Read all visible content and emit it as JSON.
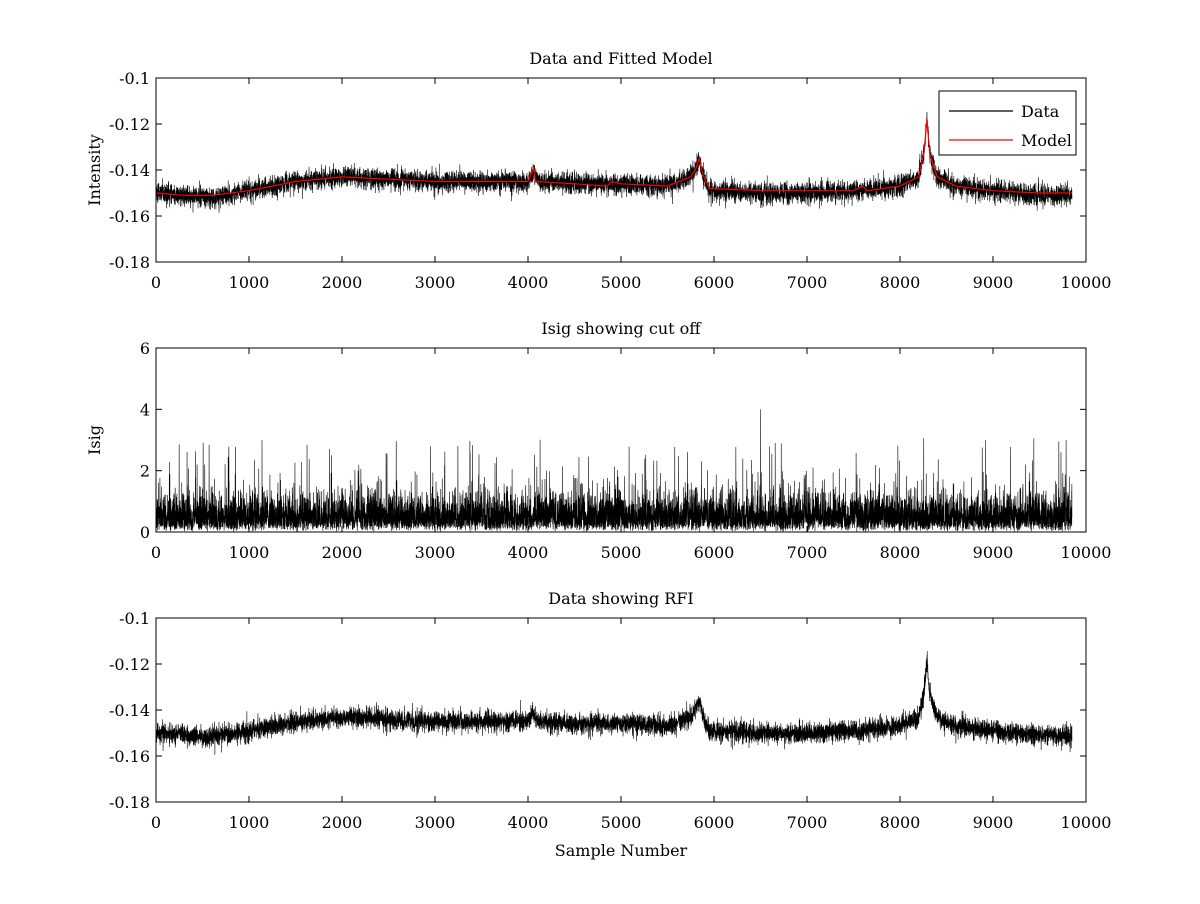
{
  "window_size": "1200x900",
  "chart_data": [
    {
      "type": "line",
      "title": "Data and Fitted Model",
      "xlabel": "",
      "ylabel": "Intensity",
      "xlim": [
        0,
        10000
      ],
      "ylim": [
        -0.18,
        -0.1
      ],
      "xticks": [
        0,
        1000,
        2000,
        3000,
        4000,
        5000,
        6000,
        7000,
        8000,
        9000,
        10000
      ],
      "yticks": [
        -0.18,
        -0.16,
        -0.14,
        -0.12,
        -0.1
      ],
      "xtick_labels": [
        "0",
        "1000",
        "2000",
        "3000",
        "4000",
        "5000",
        "6000",
        "7000",
        "8000",
        "9000",
        "10000"
      ],
      "ytick_labels": [
        "-0.18",
        "-0.16",
        "-0.14",
        "-0.12",
        "-0.1"
      ],
      "grid": false,
      "legend": {
        "placement": "top-right",
        "entries": [
          "Data",
          "Model"
        ]
      },
      "series": [
        {
          "name": "Data",
          "color": "#000000",
          "style": "noisy-line",
          "n_points": 9850,
          "baseline": [
            [
              0,
              -0.15
            ],
            [
              300,
              -0.151
            ],
            [
              600,
              -0.152
            ],
            [
              1000,
              -0.149
            ],
            [
              1500,
              -0.145
            ],
            [
              2000,
              -0.143
            ],
            [
              2500,
              -0.144
            ],
            [
              3000,
              -0.145
            ],
            [
              3500,
              -0.145
            ],
            [
              4000,
              -0.145
            ],
            [
              4060,
              -0.141
            ],
            [
              4100,
              -0.145
            ],
            [
              4500,
              -0.146
            ],
            [
              5000,
              -0.146
            ],
            [
              5500,
              -0.147
            ],
            [
              5750,
              -0.143
            ],
            [
              5800,
              -0.14
            ],
            [
              5840,
              -0.136
            ],
            [
              5880,
              -0.142
            ],
            [
              5950,
              -0.149
            ],
            [
              6500,
              -0.15
            ],
            [
              7000,
              -0.15
            ],
            [
              7500,
              -0.149
            ],
            [
              8000,
              -0.147
            ],
            [
              8200,
              -0.143
            ],
            [
              8260,
              -0.132
            ],
            [
              8290,
              -0.118
            ],
            [
              8320,
              -0.133
            ],
            [
              8400,
              -0.143
            ],
            [
              8600,
              -0.147
            ],
            [
              9000,
              -0.149
            ],
            [
              9500,
              -0.151
            ],
            [
              9850,
              -0.151
            ]
          ],
          "noise_amplitude": 0.004,
          "extremes": [
            -0.161,
            -0.114
          ]
        },
        {
          "name": "Model",
          "color": "#ff0000",
          "style": "line",
          "values": [
            [
              0,
              -0.15
            ],
            [
              300,
              -0.151
            ],
            [
              600,
              -0.151
            ],
            [
              1000,
              -0.149
            ],
            [
              1500,
              -0.145
            ],
            [
              2000,
              -0.143
            ],
            [
              2500,
              -0.144
            ],
            [
              3000,
              -0.145
            ],
            [
              3500,
              -0.145
            ],
            [
              4000,
              -0.145
            ],
            [
              4060,
              -0.139
            ],
            [
              4080,
              -0.145
            ],
            [
              4500,
              -0.146
            ],
            [
              4850,
              -0.147
            ],
            [
              4900,
              -0.145
            ],
            [
              5000,
              -0.146
            ],
            [
              5500,
              -0.147
            ],
            [
              5750,
              -0.143
            ],
            [
              5800,
              -0.14
            ],
            [
              5840,
              -0.135
            ],
            [
              5880,
              -0.142
            ],
            [
              5950,
              -0.148
            ],
            [
              6500,
              -0.149
            ],
            [
              7000,
              -0.149
            ],
            [
              7500,
              -0.149
            ],
            [
              7600,
              -0.147
            ],
            [
              7650,
              -0.149
            ],
            [
              8000,
              -0.147
            ],
            [
              8200,
              -0.143
            ],
            [
              8260,
              -0.132
            ],
            [
              8290,
              -0.118
            ],
            [
              8320,
              -0.133
            ],
            [
              8400,
              -0.143
            ],
            [
              8600,
              -0.147
            ],
            [
              9000,
              -0.149
            ],
            [
              9500,
              -0.15
            ],
            [
              9850,
              -0.15
            ]
          ]
        }
      ]
    },
    {
      "type": "line",
      "title": "Isig showing cut off",
      "xlabel": "",
      "ylabel": "Isig",
      "xlim": [
        0,
        10000
      ],
      "ylim": [
        0,
        6
      ],
      "xticks": [
        0,
        1000,
        2000,
        3000,
        4000,
        5000,
        6000,
        7000,
        8000,
        9000,
        10000
      ],
      "yticks": [
        0,
        2,
        4,
        6
      ],
      "xtick_labels": [
        "0",
        "1000",
        "2000",
        "3000",
        "4000",
        "5000",
        "6000",
        "7000",
        "8000",
        "9000",
        "10000"
      ],
      "ytick_labels": [
        "0",
        "2",
        "4",
        "6"
      ],
      "grid": false,
      "series": [
        {
          "color": "#000000",
          "style": "noisy-line",
          "n_points": 9850,
          "typical_range": [
            0,
            2
          ],
          "peak_max": 4.0,
          "peak_max_at": 6500
        }
      ]
    },
    {
      "type": "line",
      "title": "Data showing RFI",
      "xlabel": "Sample Number",
      "ylabel": "",
      "xlim": [
        0,
        10000
      ],
      "ylim": [
        -0.18,
        -0.1
      ],
      "xticks": [
        0,
        1000,
        2000,
        3000,
        4000,
        5000,
        6000,
        7000,
        8000,
        9000,
        10000
      ],
      "yticks": [
        -0.18,
        -0.16,
        -0.14,
        -0.12,
        -0.1
      ],
      "xtick_labels": [
        "0",
        "1000",
        "2000",
        "3000",
        "4000",
        "5000",
        "6000",
        "7000",
        "8000",
        "9000",
        "10000"
      ],
      "ytick_labels": [
        "-0.18",
        "-0.16",
        "-0.14",
        "-0.12",
        "-0.1"
      ],
      "grid": false,
      "series": [
        {
          "color": "#000000",
          "style": "noisy-line",
          "n_points": 9850,
          "baseline": [
            [
              0,
              -0.15
            ],
            [
              300,
              -0.151
            ],
            [
              600,
              -0.152
            ],
            [
              1000,
              -0.149
            ],
            [
              1500,
              -0.145
            ],
            [
              2000,
              -0.143
            ],
            [
              2500,
              -0.144
            ],
            [
              3000,
              -0.145
            ],
            [
              3500,
              -0.145
            ],
            [
              4000,
              -0.145
            ],
            [
              4060,
              -0.141
            ],
            [
              4100,
              -0.145
            ],
            [
              4500,
              -0.146
            ],
            [
              5000,
              -0.146
            ],
            [
              5500,
              -0.147
            ],
            [
              5750,
              -0.143
            ],
            [
              5800,
              -0.14
            ],
            [
              5840,
              -0.136
            ],
            [
              5880,
              -0.142
            ],
            [
              5950,
              -0.149
            ],
            [
              6500,
              -0.15
            ],
            [
              7000,
              -0.15
            ],
            [
              7500,
              -0.149
            ],
            [
              8000,
              -0.147
            ],
            [
              8200,
              -0.143
            ],
            [
              8260,
              -0.132
            ],
            [
              8290,
              -0.118
            ],
            [
              8320,
              -0.133
            ],
            [
              8400,
              -0.143
            ],
            [
              8600,
              -0.147
            ],
            [
              9000,
              -0.149
            ],
            [
              9500,
              -0.151
            ],
            [
              9850,
              -0.151
            ]
          ],
          "noise_amplitude": 0.004,
          "extremes": [
            -0.161,
            -0.114
          ]
        }
      ]
    }
  ]
}
